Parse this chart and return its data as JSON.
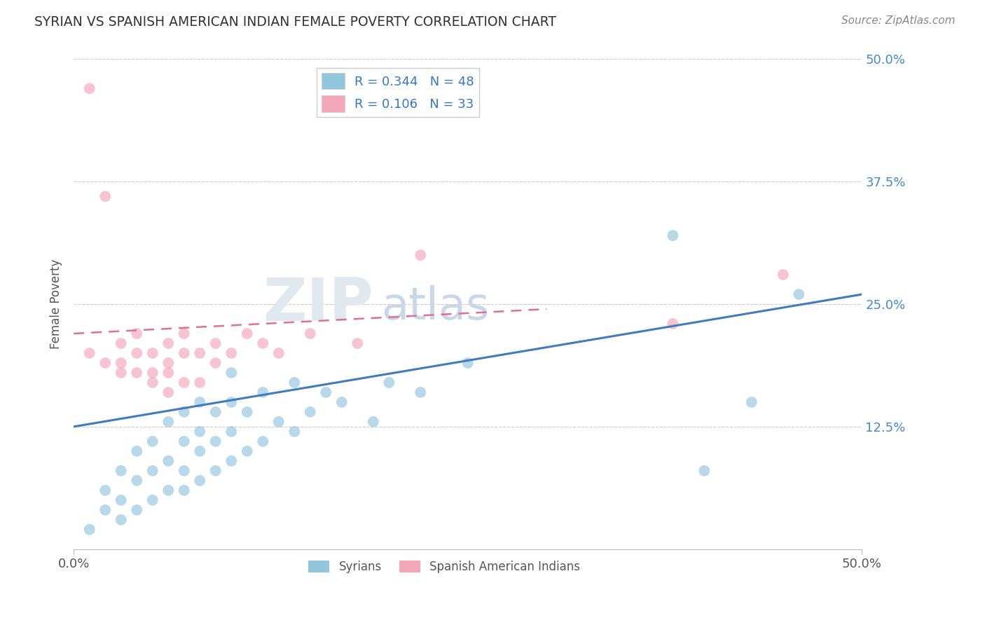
{
  "title": "SYRIAN VS SPANISH AMERICAN INDIAN FEMALE POVERTY CORRELATION CHART",
  "source": "Source: ZipAtlas.com",
  "ylabel": "Female Poverty",
  "xlim": [
    0.0,
    0.5
  ],
  "ylim": [
    0.0,
    0.5
  ],
  "ytick_labels": [
    "12.5%",
    "25.0%",
    "37.5%",
    "50.0%"
  ],
  "ytick_values": [
    0.125,
    0.25,
    0.375,
    0.5
  ],
  "legend_label1": "R = 0.344   N = 48",
  "legend_label2": "R = 0.106   N = 33",
  "legend_bottom1": "Syrians",
  "legend_bottom2": "Spanish American Indians",
  "color_blue": "#92c5de",
  "color_pink": "#f4a7b9",
  "color_blue_line": "#3e7bbf",
  "color_pink_line": "#e07090",
  "syrians_x": [
    0.01,
    0.02,
    0.02,
    0.03,
    0.03,
    0.03,
    0.04,
    0.04,
    0.04,
    0.05,
    0.05,
    0.05,
    0.06,
    0.06,
    0.06,
    0.07,
    0.07,
    0.07,
    0.07,
    0.08,
    0.08,
    0.08,
    0.08,
    0.09,
    0.09,
    0.09,
    0.1,
    0.1,
    0.1,
    0.1,
    0.11,
    0.11,
    0.12,
    0.12,
    0.13,
    0.14,
    0.14,
    0.15,
    0.16,
    0.17,
    0.19,
    0.2,
    0.22,
    0.25,
    0.38,
    0.4,
    0.43,
    0.46
  ],
  "syrians_y": [
    0.02,
    0.04,
    0.06,
    0.03,
    0.05,
    0.08,
    0.04,
    0.07,
    0.1,
    0.05,
    0.08,
    0.11,
    0.06,
    0.09,
    0.13,
    0.06,
    0.08,
    0.11,
    0.14,
    0.07,
    0.1,
    0.12,
    0.15,
    0.08,
    0.11,
    0.14,
    0.09,
    0.12,
    0.15,
    0.18,
    0.1,
    0.14,
    0.11,
    0.16,
    0.13,
    0.12,
    0.17,
    0.14,
    0.16,
    0.15,
    0.13,
    0.17,
    0.16,
    0.19,
    0.32,
    0.08,
    0.15,
    0.26
  ],
  "spanish_x": [
    0.01,
    0.01,
    0.02,
    0.02,
    0.03,
    0.03,
    0.03,
    0.04,
    0.04,
    0.04,
    0.05,
    0.05,
    0.05,
    0.06,
    0.06,
    0.06,
    0.06,
    0.07,
    0.07,
    0.07,
    0.08,
    0.08,
    0.09,
    0.09,
    0.1,
    0.11,
    0.12,
    0.13,
    0.15,
    0.18,
    0.22,
    0.38,
    0.45
  ],
  "spanish_y": [
    0.47,
    0.2,
    0.36,
    0.19,
    0.19,
    0.18,
    0.21,
    0.2,
    0.18,
    0.22,
    0.18,
    0.2,
    0.17,
    0.16,
    0.19,
    0.21,
    0.18,
    0.17,
    0.2,
    0.22,
    0.17,
    0.2,
    0.19,
    0.21,
    0.2,
    0.22,
    0.21,
    0.2,
    0.22,
    0.21,
    0.3,
    0.23,
    0.28
  ],
  "blue_line_x0": 0.0,
  "blue_line_y0": 0.125,
  "blue_line_x1": 0.5,
  "blue_line_y1": 0.26,
  "pink_line_x0": 0.0,
  "pink_line_y0": 0.22,
  "pink_line_x1": 0.3,
  "pink_line_y1": 0.245
}
